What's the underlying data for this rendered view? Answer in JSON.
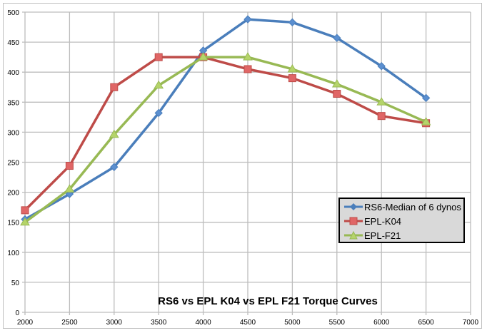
{
  "chart_data": {
    "type": "line",
    "title": "RS6 vs EPL K04 vs EPL F21 Torque Curves",
    "xlabel": "",
    "ylabel": "",
    "xlim": [
      2000,
      7000
    ],
    "ylim": [
      0,
      500
    ],
    "x_ticks": [
      2000,
      2500,
      3000,
      3500,
      4000,
      4500,
      5000,
      5500,
      6000,
      6500,
      7000
    ],
    "y_ticks": [
      0,
      50,
      100,
      150,
      200,
      250,
      300,
      350,
      400,
      450,
      500
    ],
    "x_tick_labels": [
      "2000",
      "2500",
      "3000",
      "3500",
      "4000",
      "4500",
      "5000",
      "5500",
      "6000",
      "6500",
      "7000"
    ],
    "y_tick_labels": [
      "0",
      "50",
      "100",
      "150",
      "200",
      "250",
      "300",
      "350",
      "400",
      "450",
      "500"
    ],
    "grid": true,
    "legend_position": "bottom-right",
    "x": [
      2000,
      2500,
      3000,
      3500,
      4000,
      4500,
      5000,
      5500,
      6000,
      6500
    ],
    "series": [
      {
        "name": "RS6-Median of 6 dynos",
        "color": "#4a7ebb",
        "marker": "diamond",
        "values": [
          155,
          197,
          242,
          332,
          436,
          488,
          483,
          457,
          410,
          357
        ]
      },
      {
        "name": "EPL-K04",
        "color": "#be4b48",
        "marker": "square",
        "values": [
          170,
          244,
          375,
          425,
          425,
          405,
          390,
          364,
          327,
          315
        ]
      },
      {
        "name": "EPL-F21",
        "color": "#98b954",
        "marker": "triangle",
        "values": [
          150,
          205,
          296,
          378,
          425,
          425,
          405,
          380,
          350,
          317
        ]
      }
    ]
  }
}
